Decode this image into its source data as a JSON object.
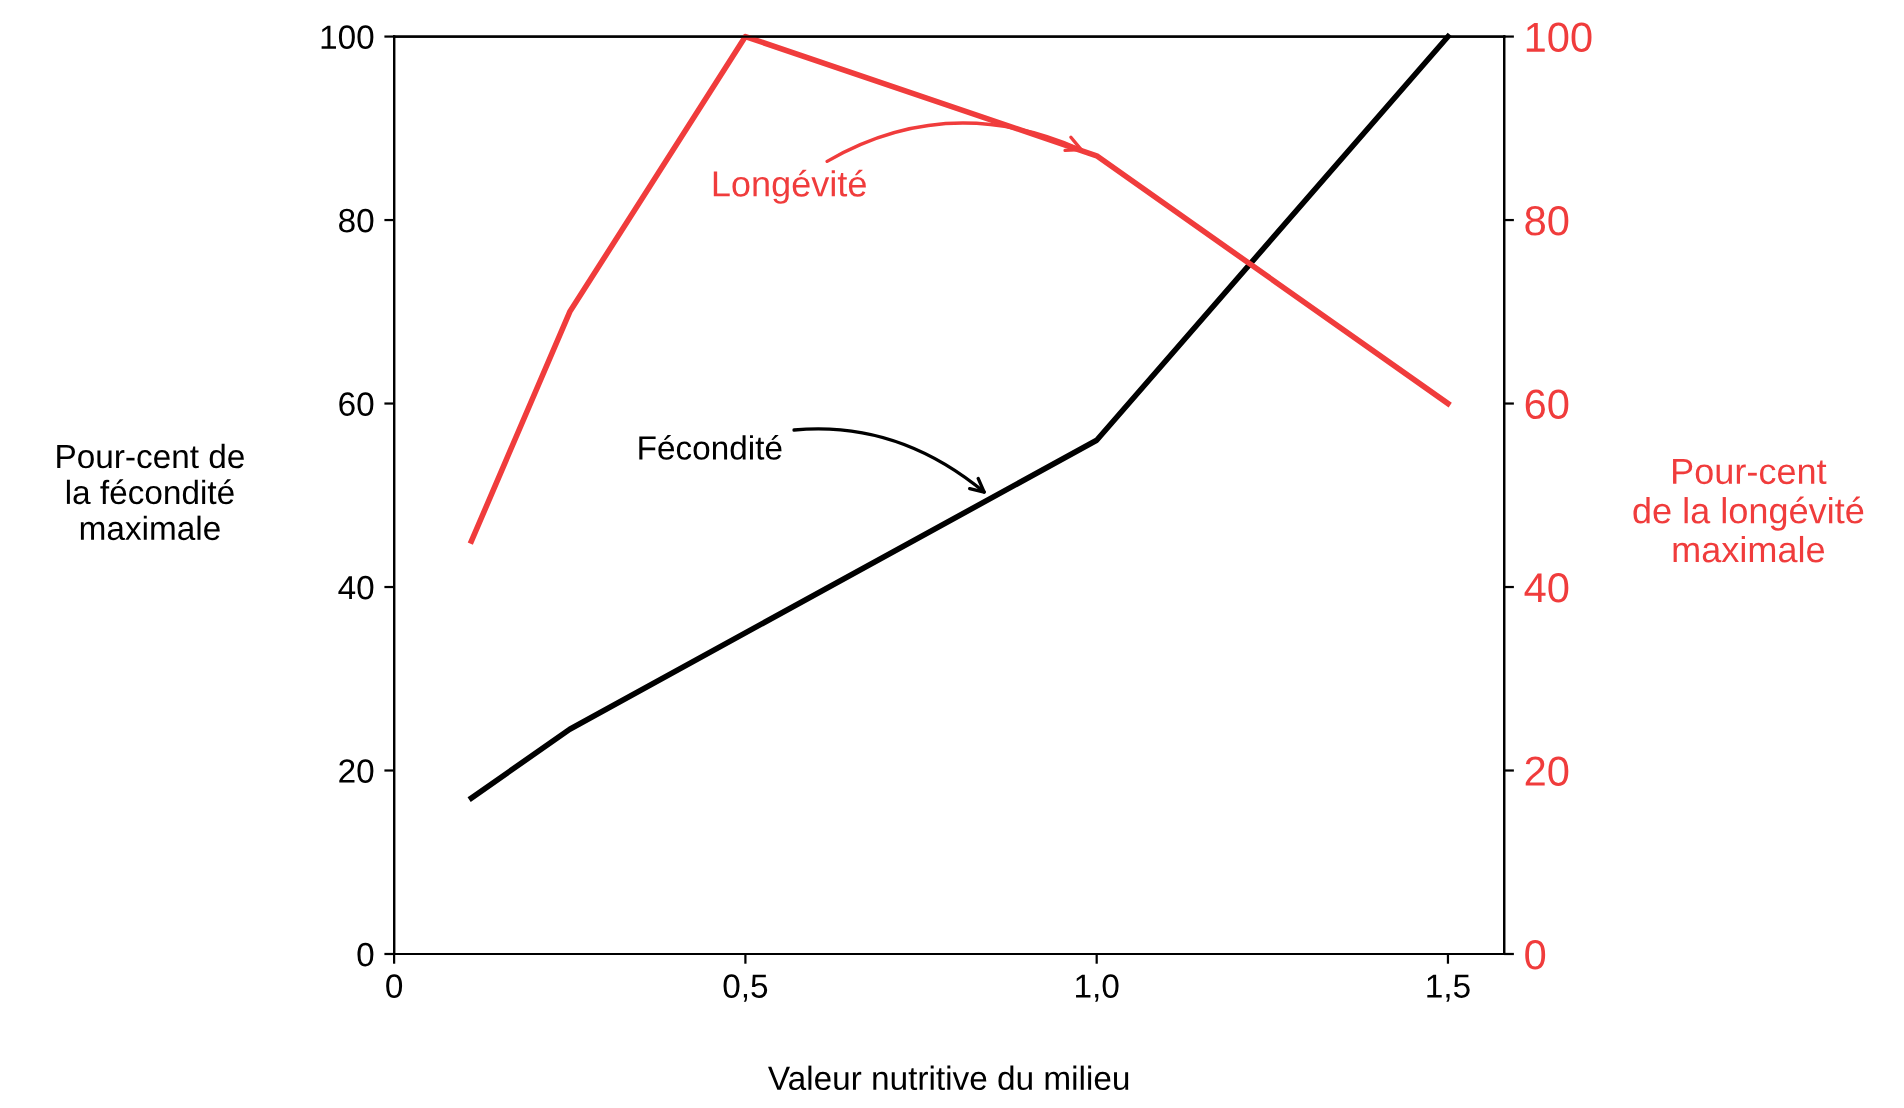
{
  "chart_data": {
    "type": "line",
    "xlabel": "Valeur nutritive du milieu",
    "ylabel": "Pour-cent de\nla fécondité\nmaximale",
    "y2label": "Pour-cent\nde la longévité\nmaximale",
    "series": [
      {
        "name": "Fécondité",
        "color": "#000000",
        "x": [
          0.11,
          0.25,
          1.0,
          1.5
        ],
        "values": [
          17,
          24.5,
          56,
          100
        ]
      },
      {
        "name": "Longévité",
        "color": "#f03c3c",
        "axis": "y2",
        "x": [
          0.11,
          0.25,
          0.5,
          1.0,
          1.5
        ],
        "values": [
          45,
          70,
          100,
          87,
          60
        ]
      }
    ],
    "xlim": [
      0,
      1.58
    ],
    "xticks": [
      0,
      {
        "value": 0.5,
        "label": "0,5"
      },
      {
        "value": 1.0,
        "label": "1,0"
      },
      {
        "value": 1.5,
        "label": "1,5"
      }
    ],
    "ylim": [
      0,
      100
    ],
    "yticks": [
      0,
      20,
      40,
      60,
      80,
      100
    ],
    "y2lim": [
      0,
      100
    ],
    "y2ticks": [
      0,
      20,
      40,
      60,
      80,
      100
    ],
    "grid": false,
    "legend": false,
    "marker": "none",
    "line_style": "solid"
  }
}
